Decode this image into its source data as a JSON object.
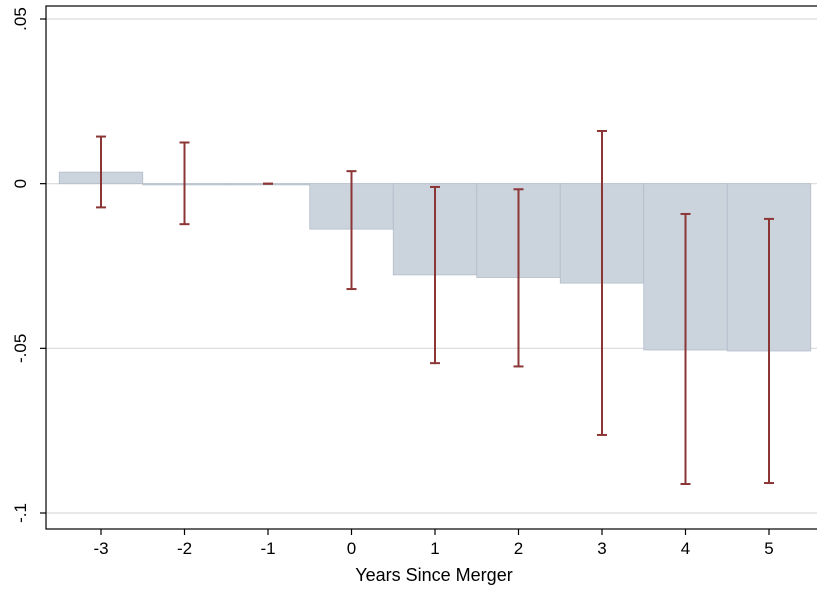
{
  "chart_data": {
    "type": "bar",
    "xlabel": "Years Since Merger",
    "ylabel": "",
    "categories": [
      -3,
      -2,
      -1,
      0,
      1,
      2,
      3,
      4,
      5
    ],
    "x_tick_labels": [
      "-3",
      "-2",
      "-1",
      "0",
      "1",
      "2",
      "3",
      "4",
      "5"
    ],
    "ylim": [
      -0.1,
      0.05
    ],
    "y_ticks": [
      -0.1,
      -0.05,
      0,
      0.05
    ],
    "y_tick_labels": [
      "-.1",
      "-.05",
      "0",
      ".05"
    ],
    "grid": true,
    "series": [
      {
        "values": [
          0.0035,
          -0.0003,
          0.0,
          -0.0138,
          -0.0277,
          -0.0285,
          -0.0302,
          -0.0505,
          -0.0508
        ],
        "ci_lower": [
          -0.0072,
          -0.0123,
          0.0,
          -0.032,
          -0.0545,
          -0.0555,
          -0.0763,
          -0.0912,
          -0.0909
        ],
        "ci_upper": [
          0.0143,
          0.0125,
          0.0,
          0.0038,
          -0.001,
          -0.0017,
          0.016,
          -0.0092,
          -0.0107
        ]
      }
    ],
    "colors": {
      "bar": "#cbd3dd",
      "bar_edge": "#b3bdc9",
      "error_bar": "#8b3535",
      "grid": "#d9d9d9",
      "axis": "#000000"
    }
  }
}
